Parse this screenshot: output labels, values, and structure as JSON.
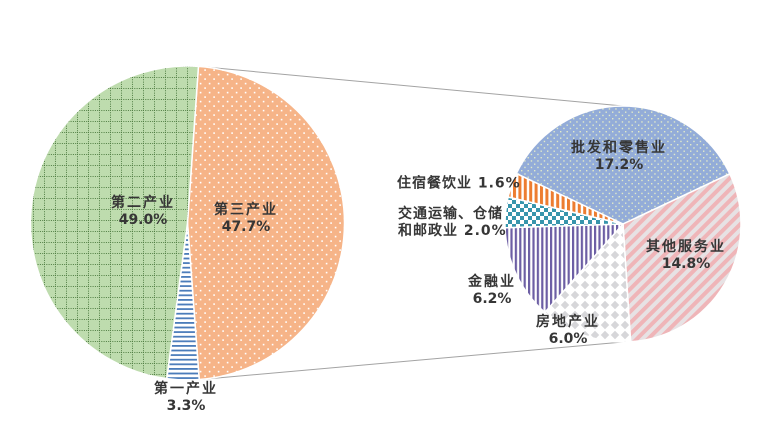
{
  "chart_data": {
    "type": "pie",
    "variant": "pie-of-pie",
    "title": "",
    "legend": "none",
    "main_pie": {
      "center": [
        187.5,
        223
      ],
      "radius": 157,
      "start_angle_deg": 4,
      "slices": [
        {
          "key": "tertiary_industry",
          "label": "第三产业",
          "value": 47.7,
          "pattern": "orange-dots"
        },
        {
          "key": "primary_industry",
          "label": "第一产业",
          "value": 3.3,
          "pattern": "blue-hlines"
        },
        {
          "key": "secondary_industry",
          "label": "第二产业",
          "value": 49.0,
          "pattern": "green-grid"
        }
      ]
    },
    "secondary_pie": {
      "represents": "第三产业",
      "center": [
        623,
        224
      ],
      "radius": 118,
      "start_angle_deg": 295.3,
      "slices": [
        {
          "key": "wholesale_retail",
          "label": "批发和零售业",
          "value": 17.2,
          "pattern": "blue-dots"
        },
        {
          "key": "other_services",
          "label": "其他服务业",
          "value": 14.8,
          "pattern": "pink-diag"
        },
        {
          "key": "real_estate",
          "label": "房地产业",
          "value": 6.0,
          "pattern": "gray-diamonds"
        },
        {
          "key": "finance",
          "label": "金融业",
          "value": 6.2,
          "pattern": "purple-vlines"
        },
        {
          "key": "transport_storage_post",
          "label": "交通运输、仓储和邮政业",
          "value": 2.0,
          "pattern": "teal-checker"
        },
        {
          "key": "hotel_catering",
          "label": "住宿餐饮业",
          "value": 1.6,
          "pattern": "orange-vlines"
        }
      ]
    }
  },
  "labels": {
    "secondary_industry": {
      "name": "第二产业",
      "pct": "49.0%"
    },
    "tertiary_industry": {
      "name": "第三产业",
      "pct": "47.7%"
    },
    "primary_industry": {
      "name": "第一产业",
      "pct": "3.3%"
    },
    "wholesale_retail": {
      "name": "批发和零售业",
      "pct": "17.2%"
    },
    "other_services": {
      "name": "其他服务业",
      "pct": "14.8%"
    },
    "real_estate": {
      "name": "房地产业",
      "pct": "6.0%"
    },
    "finance": {
      "name": "金融业",
      "pct": "6.2%"
    },
    "transport_storage_post": {
      "line1": "交通运输、仓储",
      "line2": "和邮政业 2.0%"
    },
    "hotel_catering": {
      "text": "住宿餐饮业 1.6%"
    }
  },
  "colors": {
    "label_text": "#363636",
    "connector_line": "#a3a3a3",
    "slice_border": "#ffffff",
    "green_bg": "#bedcae",
    "green_grid": "#4f7d42",
    "orange_bg": "#f6b488",
    "blue_line": "#4b7cba",
    "blue_bg": "#93acd8",
    "blue_dot": "#e2ebc8",
    "pink_bg": "#e7e2e4",
    "pink_stripe": "#efb5b8",
    "diamond_gray": "#d6d6d9",
    "purple_stripe": "#6c5ea4",
    "teal_check": "#3795ac",
    "hotel_orange_stripe": "#ed7d31"
  }
}
